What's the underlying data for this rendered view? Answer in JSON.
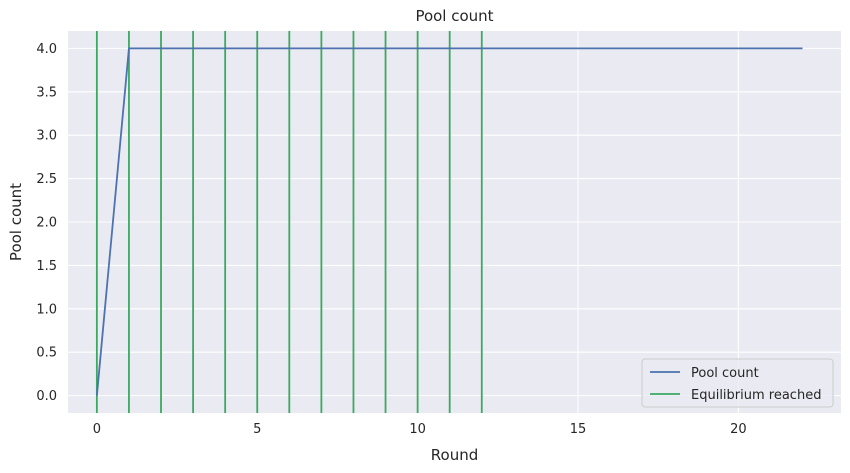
{
  "chart_data": {
    "type": "line",
    "title": "Pool count",
    "xlabel": "Round",
    "ylabel": "Pool count",
    "xlim": [
      -0.9,
      23.2
    ],
    "ylim": [
      -0.2,
      4.2
    ],
    "xticks": [
      0,
      5,
      10,
      15,
      20
    ],
    "yticks": [
      0.0,
      0.5,
      1.0,
      1.5,
      2.0,
      2.5,
      3.0,
      3.5,
      4.0
    ],
    "ytick_labels": [
      "0.0",
      "0.5",
      "1.0",
      "1.5",
      "2.0",
      "2.5",
      "3.0",
      "3.5",
      "4.0"
    ],
    "grid": true,
    "legend_position": "lower-right",
    "series": [
      {
        "name": "Pool count",
        "color": "#4c72b0",
        "x": [
          0,
          1,
          2,
          3,
          4,
          5,
          6,
          7,
          8,
          9,
          10,
          11,
          12,
          13,
          14,
          15,
          16,
          17,
          18,
          19,
          20,
          21,
          22
        ],
        "y": [
          0,
          4,
          4,
          4,
          4,
          4,
          4,
          4,
          4,
          4,
          4,
          4,
          4,
          4,
          4,
          4,
          4,
          4,
          4,
          4,
          4,
          4,
          4
        ]
      }
    ],
    "vlines": {
      "name": "Equilibrium reached",
      "color": "#3aaa5f",
      "x": [
        0,
        1,
        2,
        3,
        4,
        5,
        6,
        7,
        8,
        9,
        10,
        11,
        12
      ]
    }
  }
}
